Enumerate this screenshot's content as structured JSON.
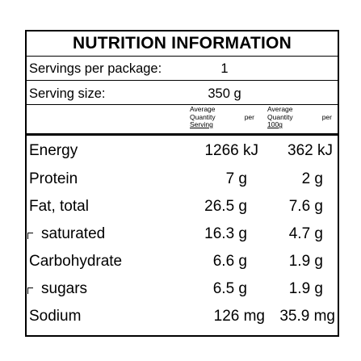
{
  "title": "NUTRITION INFORMATION",
  "servings_per_package": {
    "label": "Servings per package:",
    "value": "1"
  },
  "serving_size": {
    "label": "Serving size:",
    "value": "350 g"
  },
  "columns": {
    "per_serving": {
      "line1": "Average",
      "line2a": "Quantity",
      "line2b": "per",
      "line3": "Serving"
    },
    "per_100g": {
      "line1": "Average",
      "line2a": "Quantity",
      "line2b": "per",
      "line3": "100g"
    }
  },
  "rows": [
    {
      "label": "Energy",
      "serving": "1266 kJ",
      "per100": "362 kJ"
    },
    {
      "label": "Protein",
      "serving": "7 g",
      "per100": "2 g"
    },
    {
      "label": "Fat, total",
      "serving": "26.5 g",
      "per100": "7.6 g"
    },
    {
      "label": "saturated",
      "serving": "16.3 g",
      "per100": "4.7 g"
    },
    {
      "label": "Carbohydrate",
      "serving": "6.6 g",
      "per100": "1.9 g"
    },
    {
      "label": "sugars",
      "serving": "6.5 g",
      "per100": "1.9 g"
    },
    {
      "label": "Sodium",
      "serving": "126 mg",
      "per100": "35.9 mg"
    }
  ]
}
